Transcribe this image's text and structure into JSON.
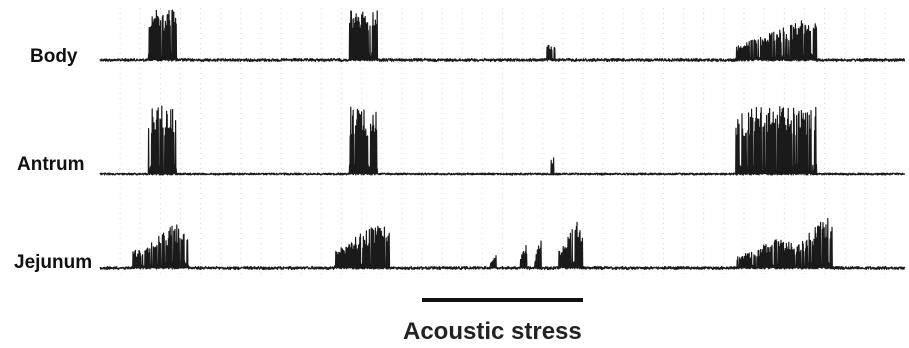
{
  "chart_data": {
    "type": "line",
    "title": "",
    "xlabel": "",
    "ylabel": "",
    "x_range": [
      0,
      100
    ],
    "grid": "faint dotted vertical lines",
    "line_color": "#1a1a1a",
    "stimulus": {
      "label": "Acoustic stress",
      "x_start": 40,
      "x_end": 60
    },
    "series": [
      {
        "name": "Body",
        "baseline": 0.1,
        "bursts": [
          {
            "x_start": 6,
            "x_end": 9.5,
            "peak": 1.0
          },
          {
            "x_start": 31,
            "x_end": 34.5,
            "peak": 1.0
          },
          {
            "x_start": 55.5,
            "x_end": 56.5,
            "peak": 0.3
          },
          {
            "x_start": 79,
            "x_end": 89,
            "peak": 0.9
          }
        ]
      },
      {
        "name": "Antrum",
        "baseline": 0.05,
        "bursts": [
          {
            "x_start": 6,
            "x_end": 9.5,
            "peak": 1.0
          },
          {
            "x_start": 31,
            "x_end": 34.5,
            "peak": 1.0
          },
          {
            "x_start": 56,
            "x_end": 56.4,
            "peak": 0.25
          },
          {
            "x_start": 79,
            "x_end": 89,
            "peak": 1.0
          }
        ]
      },
      {
        "name": "Jejunum",
        "baseline": 0.1,
        "bursts": [
          {
            "x_start": 4,
            "x_end": 11,
            "peak": 0.9
          },
          {
            "x_start": 29,
            "x_end": 36,
            "peak": 0.9
          },
          {
            "x_start": 48.5,
            "x_end": 49.2,
            "peak": 0.3
          },
          {
            "x_start": 52,
            "x_end": 53,
            "peak": 0.45
          },
          {
            "x_start": 54,
            "x_end": 54.8,
            "peak": 0.55
          },
          {
            "x_start": 57,
            "x_end": 60,
            "peak": 0.95
          },
          {
            "x_start": 79,
            "x_end": 86,
            "peak": 0.6
          },
          {
            "x_start": 86,
            "x_end": 91,
            "peak": 1.0
          }
        ]
      }
    ]
  }
}
